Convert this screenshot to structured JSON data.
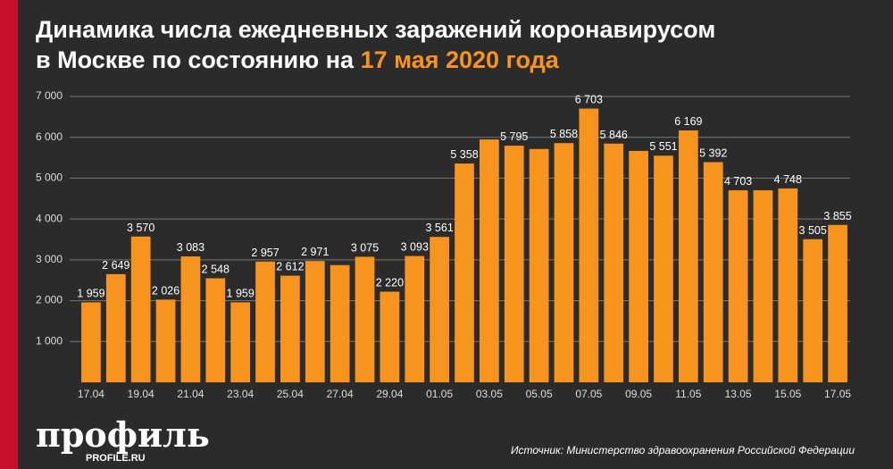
{
  "chart_data": {
    "type": "bar",
    "title_line1": "Динамика числа ежедневных заражений коронавирусом",
    "title_line2": "в Москве по состоянию на",
    "title_date": "17 мая 2020 года",
    "source": "Источник: Министерство здравоохранения Российской Федерации",
    "logo": "профиль",
    "logo_site": "PROFILE.RU",
    "categories": [
      "17.04",
      null,
      "19.04",
      null,
      "21.04",
      null,
      "23.04",
      null,
      "25.04",
      null,
      "27.04",
      null,
      "29.04",
      null,
      "01.05",
      null,
      "03.05",
      null,
      "05.05",
      null,
      "07.05",
      null,
      "09.05",
      null,
      "11.05",
      null,
      "13.05",
      null,
      "15.05",
      null,
      "17.05"
    ],
    "values": [
      1959,
      2649,
      3570,
      2026,
      3083,
      2548,
      1959,
      2957,
      2612,
      2971,
      2871,
      3075,
      2220,
      3093,
      3561,
      5358,
      5948,
      5795,
      5714,
      5858,
      6703,
      5846,
      5667,
      5551,
      6169,
      5392,
      4703,
      4703,
      4748,
      3505,
      3855
    ],
    "value_labels": [
      "1 959",
      "2 649",
      "3 570",
      "2 026",
      "3 083",
      "2 548",
      "1 959",
      "2 957",
      "2 612",
      "2 971",
      null,
      "3 075",
      "2 220",
      "3 093",
      "3 561",
      "5 358",
      null,
      "5 795",
      null,
      "5 858",
      "6 703",
      "5 846",
      null,
      "5 551",
      "6 169",
      "5 392",
      "4 703",
      null,
      "4 748",
      "3 505",
      "3 855"
    ],
    "color": "#f7941d",
    "ylim": [
      0,
      7000
    ],
    "yticks": [
      {
        "value": 1000,
        "label": "1 000"
      },
      {
        "value": 2000,
        "label": "2 000"
      },
      {
        "value": 3000,
        "label": "3 000"
      },
      {
        "value": 4000,
        "label": "4 000"
      },
      {
        "value": 5000,
        "label": "5 000"
      },
      {
        "value": 6000,
        "label": "6 000"
      },
      {
        "value": 7000,
        "label": "7 000"
      }
    ],
    "grid": true
  }
}
